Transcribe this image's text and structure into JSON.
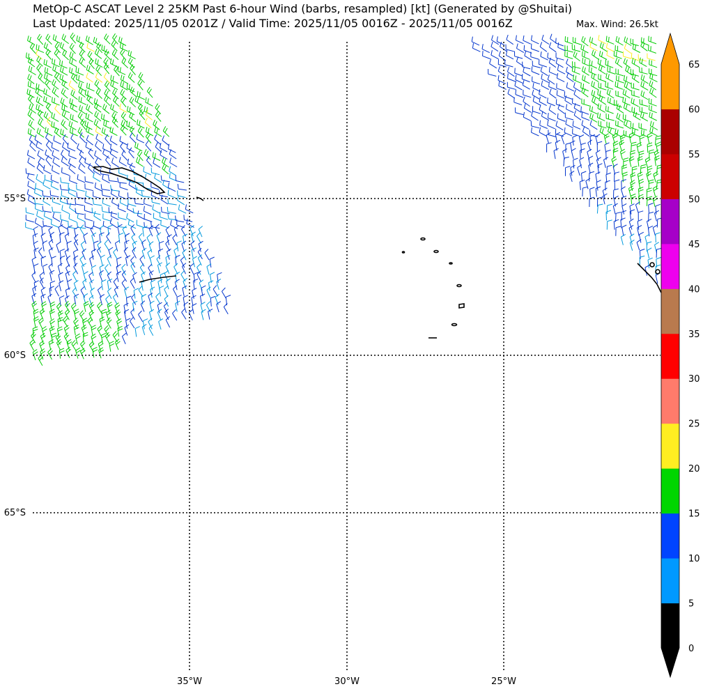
{
  "header": {
    "title_line1": "MetOp-C ASCAT Level 2 25KM Past 6-hour Wind (barbs, resampled) [kt] (Generated by @Shuitai)",
    "title_line2": "Last Updated: 2025/11/05 0201Z / Valid Time: 2025/11/05 0016Z - 2025/11/05 0016Z",
    "max_wind": "Max. Wind: 26.5kt"
  },
  "map": {
    "lon_labels": [
      "35°W",
      "30°W",
      "25°W"
    ],
    "lat_labels": [
      "55°S",
      "60°S",
      "65°S"
    ]
  },
  "colorbar": {
    "unit": "kt",
    "ticks": [
      "0",
      "5",
      "10",
      "15",
      "20",
      "25",
      "30",
      "35",
      "40",
      "45",
      "50",
      "55",
      "60",
      "65"
    ],
    "colors": [
      "#000000",
      "#0099ff",
      "#0044ff",
      "#00d600",
      "#ffee22",
      "#ff7b6b",
      "#ff0000",
      "#b97a4e",
      "#ee00ee",
      "#a600c8",
      "#cc0000",
      "#aa0000",
      "#ff9900"
    ]
  },
  "swath_colors": {
    "calm": "#0099dd",
    "light": "#0033cc",
    "moderate": "#00cc00",
    "fresh": "#ffee22"
  }
}
